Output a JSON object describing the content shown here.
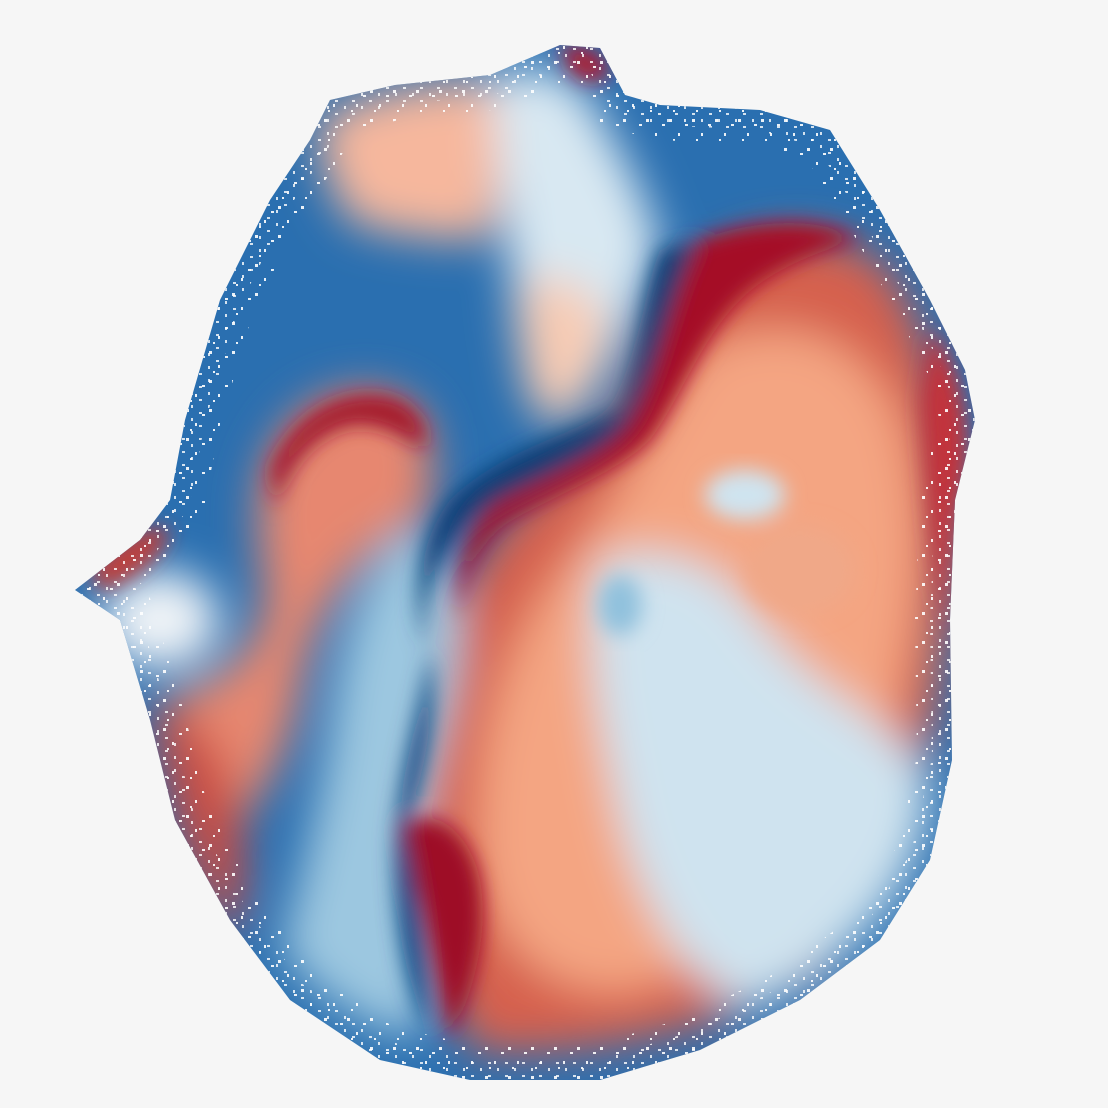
{
  "image": {
    "subject": "phase-map",
    "background_color": "#f6f6f6",
    "colormap": {
      "name": "RdBu",
      "stops": [
        "#67001f",
        "#b2182b",
        "#d6604d",
        "#f4a582",
        "#fddbc7",
        "#f7f7f7",
        "#d1e5f0",
        "#92c5de",
        "#4393c3",
        "#2166ac",
        "#053061"
      ]
    }
  }
}
